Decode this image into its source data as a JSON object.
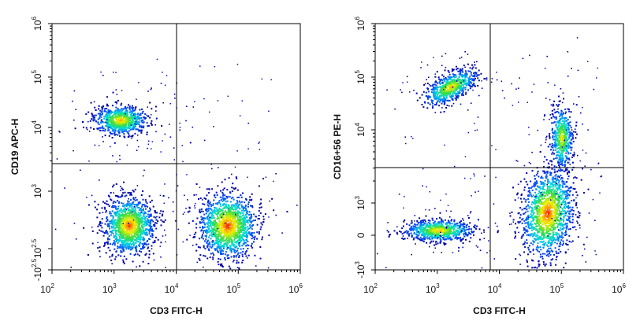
{
  "chart_data": [
    {
      "type": "scatter",
      "plot_style": "flow-cytometry-density-dot-plot",
      "xlabel": "CD3 FITC-H",
      "ylabel": "CD19 APC-H",
      "x_scale": "log",
      "xlim": [
        100,
        1000000
      ],
      "x_ticks": [
        {
          "base": "10",
          "exp": "2",
          "value": 100
        },
        {
          "base": "10",
          "exp": "3",
          "value": 1000
        },
        {
          "base": "10",
          "exp": "4",
          "value": 10000
        },
        {
          "base": "10",
          "exp": "5",
          "value": 100000
        },
        {
          "base": "10",
          "exp": "6",
          "value": 1000000
        }
      ],
      "y_scale": "biexponential",
      "y_ticks": [
        {
          "base": "10",
          "exp": "6"
        },
        {
          "base": "10",
          "exp": "5"
        },
        {
          "base": "10",
          "exp": "4"
        },
        {
          "base": "10",
          "exp": "3"
        },
        {
          "base": "10",
          "exp": "2.5",
          "prefix": ""
        },
        {
          "base": "10",
          "exp": "2.5",
          "prefix": "-"
        }
      ],
      "gate": {
        "x": 9000,
        "y": 2500
      },
      "populations": [
        {
          "x": 1300,
          "y": 14000,
          "relative_size": 0.55
        },
        {
          "x": 1700,
          "y": 500,
          "relative_size": 0.9
        },
        {
          "x": 50000,
          "y": 500,
          "relative_size": 1.0
        }
      ]
    },
    {
      "type": "scatter",
      "plot_style": "flow-cytometry-density-dot-plot",
      "xlabel": "CD3 FITC-H",
      "ylabel": "CD16+56 PE-H",
      "x_scale": "log",
      "xlim": [
        100,
        1000000
      ],
      "x_ticks": [
        {
          "base": "10",
          "exp": "2",
          "value": 100
        },
        {
          "base": "10",
          "exp": "3",
          "value": 1000
        },
        {
          "base": "10",
          "exp": "4",
          "value": 10000
        },
        {
          "base": "10",
          "exp": "5",
          "value": 100000
        },
        {
          "base": "10",
          "exp": "6",
          "value": 1000000
        }
      ],
      "y_scale": "biexponential",
      "y_ticks": [
        {
          "base": "10",
          "exp": "6",
          "prefix": ""
        },
        {
          "base": "10",
          "exp": "5",
          "prefix": ""
        },
        {
          "base": "10",
          "exp": "4",
          "prefix": ""
        },
        {
          "base": "10",
          "exp": "3",
          "prefix": ""
        },
        {
          "text": "0"
        },
        {
          "base": "10",
          "exp": "3",
          "prefix": "-"
        }
      ],
      "gate": {
        "x": 7000,
        "y": 2000
      },
      "populations": [
        {
          "x": 2000,
          "y": 60000,
          "relative_size": 0.5
        },
        {
          "x": 1100,
          "y": 0,
          "relative_size": 0.55
        },
        {
          "x": 55000,
          "y": 700,
          "relative_size": 1.0
        },
        {
          "x": 70000,
          "y": 10000,
          "relative_size": 0.35
        }
      ]
    }
  ]
}
